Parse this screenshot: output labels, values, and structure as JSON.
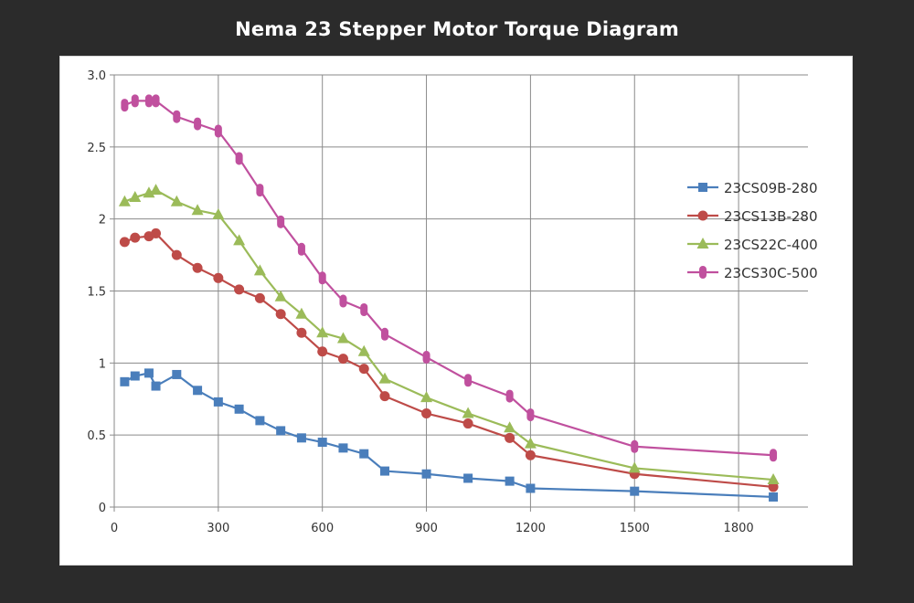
{
  "chart_data": {
    "type": "line",
    "title": "Nema 23 Stepper Motor Torque Diagram",
    "xlabel": "",
    "ylabel": "",
    "xlim": [
      0,
      2000
    ],
    "ylim": [
      0,
      3
    ],
    "x_ticks": [
      "0",
      "300",
      "600",
      "900",
      "1200",
      "1500",
      "1800"
    ],
    "y_ticks": [
      "0",
      "0.5",
      "1",
      "1.5",
      "2",
      "2.5",
      "3.0"
    ],
    "grid": true,
    "legend_position": "right",
    "series": [
      {
        "name": "23CS09B-280",
        "color": "#4a7ebb",
        "marker": "square",
        "x": [
          30,
          60,
          100,
          120,
          180,
          240,
          300,
          360,
          420,
          480,
          540,
          600,
          660,
          720,
          780,
          900,
          1020,
          1140,
          1200,
          1500,
          1900
        ],
        "y": [
          0.87,
          0.91,
          0.93,
          0.84,
          0.92,
          0.81,
          0.73,
          0.68,
          0.6,
          0.53,
          0.48,
          0.45,
          0.41,
          0.37,
          0.25,
          0.23,
          0.2,
          0.18,
          0.13,
          0.11,
          0.07
        ]
      },
      {
        "name": "23CS13B-280",
        "color": "#be4b48",
        "marker": "circle",
        "x": [
          30,
          60,
          100,
          120,
          180,
          240,
          300,
          360,
          420,
          480,
          540,
          600,
          660,
          720,
          780,
          900,
          1020,
          1140,
          1200,
          1500,
          1900
        ],
        "y": [
          1.84,
          1.87,
          1.88,
          1.9,
          1.75,
          1.66,
          1.59,
          1.51,
          1.45,
          1.34,
          1.21,
          1.08,
          1.03,
          0.96,
          0.77,
          0.65,
          0.58,
          0.48,
          0.36,
          0.23,
          0.14
        ]
      },
      {
        "name": "23CS22C-400",
        "color": "#9bbb59",
        "marker": "triangle",
        "x": [
          30,
          60,
          100,
          120,
          180,
          240,
          300,
          360,
          420,
          480,
          540,
          600,
          660,
          720,
          780,
          900,
          1020,
          1140,
          1200,
          1500,
          1900
        ],
        "y": [
          2.12,
          2.15,
          2.18,
          2.2,
          2.12,
          2.06,
          2.03,
          1.85,
          1.64,
          1.46,
          1.34,
          1.21,
          1.17,
          1.08,
          0.89,
          0.76,
          0.65,
          0.55,
          0.44,
          0.27,
          0.19
        ]
      },
      {
        "name": "23CS30C-500",
        "color": "#c0509e",
        "marker": "double-circle",
        "x": [
          30,
          60,
          100,
          120,
          180,
          240,
          300,
          360,
          420,
          480,
          540,
          600,
          660,
          720,
          780,
          900,
          1020,
          1140,
          1200,
          1500,
          1900
        ],
        "y": [
          2.79,
          2.82,
          2.82,
          2.82,
          2.71,
          2.66,
          2.61,
          2.42,
          2.2,
          1.98,
          1.79,
          1.59,
          1.43,
          1.37,
          1.2,
          1.04,
          0.88,
          0.77,
          0.64,
          0.42,
          0.36
        ]
      }
    ]
  }
}
